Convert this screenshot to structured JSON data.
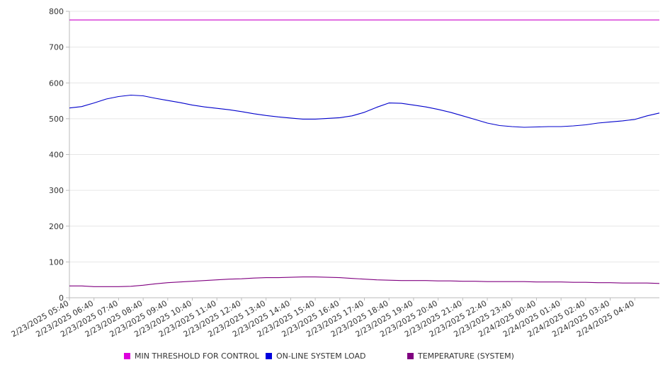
{
  "chart_data": {
    "type": "line",
    "title": "",
    "xlabel": "",
    "ylabel": "",
    "ylim": [
      0,
      800
    ],
    "yticks": [
      0,
      100,
      200,
      300,
      400,
      500,
      600,
      700,
      800
    ],
    "grid": true,
    "legend_position": "bottom",
    "x_tick_labels": [
      "2/23/2025 05:40",
      "2/23/2025 06:40",
      "2/23/2025 07:40",
      "2/23/2025 08:40",
      "2/23/2025 09:40",
      "2/23/2025 10:40",
      "2/23/2025 11:40",
      "2/23/2025 12:40",
      "2/23/2025 13:40",
      "2/23/2025 14:40",
      "2/23/2025 15:40",
      "2/23/2025 16:40",
      "2/23/2025 17:40",
      "2/23/2025 18:40",
      "2/23/2025 19:40",
      "2/23/2025 20:40",
      "2/23/2025 21:40",
      "2/23/2025 22:40",
      "2/23/2025 23:40",
      "2/24/2025 00:40",
      "2/24/2025 01:40",
      "2/24/2025 02:40",
      "2/24/2025 03:40",
      "2/24/2025 04:40"
    ],
    "x": [
      "05:40",
      "06:10",
      "06:40",
      "07:10",
      "07:40",
      "08:10",
      "08:40",
      "09:10",
      "09:40",
      "10:10",
      "10:40",
      "11:10",
      "11:40",
      "12:10",
      "12:40",
      "13:10",
      "13:40",
      "14:10",
      "14:40",
      "15:10",
      "15:40",
      "16:10",
      "16:40",
      "17:10",
      "17:40",
      "18:10",
      "18:40",
      "19:10",
      "19:40",
      "20:10",
      "20:40",
      "21:10",
      "21:40",
      "22:10",
      "22:40",
      "23:10",
      "23:40",
      "00:10",
      "00:40",
      "01:10",
      "01:40",
      "02:10",
      "02:40",
      "03:10",
      "03:40",
      "04:10",
      "04:40",
      "05:10",
      "05:40"
    ],
    "series": [
      {
        "name": "MIN THRESHOLD FOR CONTROL",
        "color": "#cc00cc",
        "values": [
          776,
          776,
          776,
          776,
          776,
          776,
          776,
          776,
          776,
          776,
          776,
          776,
          776,
          776,
          776,
          776,
          776,
          776,
          776,
          776,
          776,
          776,
          776,
          776,
          776,
          776,
          776,
          776,
          776,
          776,
          776,
          776,
          776,
          776,
          776,
          776,
          776,
          776,
          776,
          776,
          776,
          776,
          776,
          776,
          776,
          776,
          776,
          776,
          776
        ]
      },
      {
        "name": "ON-LINE SYSTEM LOAD",
        "color": "#0000cc",
        "values": [
          530,
          534,
          544,
          555,
          562,
          566,
          564,
          557,
          551,
          545,
          538,
          533,
          529,
          525,
          520,
          514,
          509,
          505,
          502,
          499,
          499,
          501,
          503,
          508,
          518,
          532,
          544,
          543,
          538,
          533,
          526,
          518,
          508,
          498,
          488,
          481,
          478,
          476,
          477,
          478,
          478,
          480,
          483,
          488,
          491,
          494,
          498,
          508,
          516
        ]
      },
      {
        "name": "TEMPERATURE (SYSTEM)",
        "color": "#800080",
        "values": [
          33,
          33,
          31,
          31,
          31,
          32,
          35,
          39,
          42,
          44,
          46,
          48,
          50,
          52,
          53,
          55,
          56,
          56,
          57,
          58,
          58,
          57,
          56,
          54,
          52,
          50,
          49,
          48,
          48,
          48,
          47,
          47,
          46,
          46,
          45,
          45,
          45,
          45,
          44,
          44,
          44,
          43,
          43,
          42,
          42,
          41,
          41,
          41,
          40
        ]
      }
    ]
  }
}
